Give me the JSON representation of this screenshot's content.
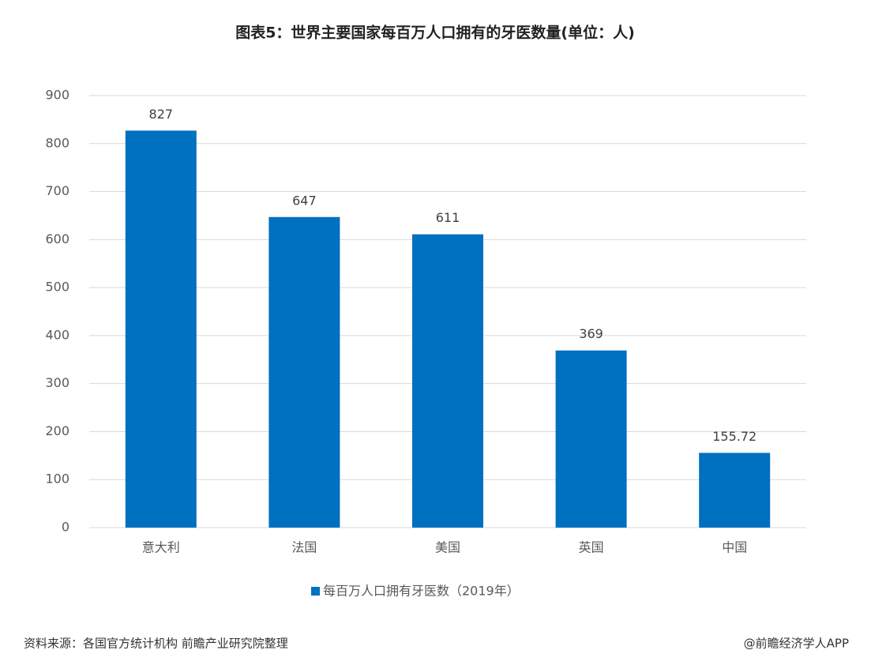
{
  "chart_data": {
    "type": "bar",
    "title": "图表5：世界主要国家每百万人口拥有的牙医数量(单位：人)",
    "categories": [
      "意大利",
      "法国",
      "美国",
      "英国",
      "中国"
    ],
    "series": [
      {
        "name": "每百万人口拥有牙医数（2019年）",
        "color": "#0070c0",
        "values": [
          827,
          647,
          611,
          369,
          155.72
        ]
      }
    ],
    "ylim": [
      0,
      900
    ],
    "yticks": [
      0,
      100,
      200,
      300,
      400,
      500,
      600,
      700,
      800,
      900
    ],
    "grid": true,
    "legend": "bottom",
    "source": "资料来源：各国官方统计机构 前瞻产业研究院整理",
    "credit": "@前瞻经济学人APP"
  }
}
